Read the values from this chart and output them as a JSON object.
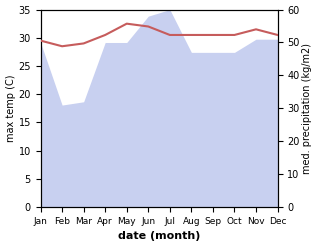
{
  "months": [
    "Jan",
    "Feb",
    "Mar",
    "Apr",
    "May",
    "Jun",
    "Jul",
    "Aug",
    "Sep",
    "Oct",
    "Nov",
    "Dec"
  ],
  "temp": [
    29.5,
    28.5,
    29.0,
    30.5,
    32.5,
    32.0,
    30.5,
    30.5,
    30.5,
    30.5,
    31.5,
    30.5
  ],
  "precip": [
    50,
    31,
    32,
    50,
    50,
    58,
    60,
    47,
    47,
    47,
    51,
    51
  ],
  "temp_color": "#c65c5c",
  "precip_color_fill": "#c8d0f0",
  "xlabel": "date (month)",
  "ylabel_left": "max temp (C)",
  "ylabel_right": "med. precipitation (kg/m2)",
  "ylim_left": [
    0,
    35
  ],
  "ylim_right": [
    0,
    60
  ],
  "yticks_left": [
    0,
    5,
    10,
    15,
    20,
    25,
    30,
    35
  ],
  "yticks_right": [
    0,
    10,
    20,
    30,
    40,
    50,
    60
  ],
  "background_color": "#ffffff"
}
